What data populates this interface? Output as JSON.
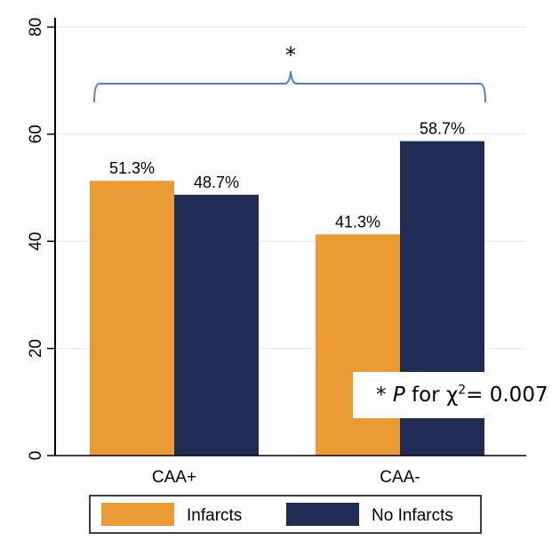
{
  "chart_data": {
    "type": "bar",
    "categories": [
      "CAA+",
      "CAA-"
    ],
    "series": [
      {
        "name": "Infarcts",
        "color": "#EB9B36",
        "values": [
          51.3,
          41.3
        ],
        "labels": [
          "51.3%",
          "41.3%"
        ]
      },
      {
        "name": "No Infarcts",
        "color": "#1F2D55",
        "values": [
          48.7,
          58.7
        ],
        "labels": [
          "48.7%",
          "58.7%"
        ]
      }
    ],
    "ylim": [
      0,
      85
    ],
    "yticks": [
      "0",
      "20",
      "40",
      "60",
      "80"
    ],
    "ytick_values": [
      0,
      20,
      40,
      60,
      80
    ],
    "grid": true,
    "legend_position": "bottom",
    "significance_marker": "*",
    "annotation": {
      "star": "*",
      "p": "P",
      "for": "for",
      "chi": "χ",
      "sup": "2",
      "value": "= 0.007"
    },
    "bracket_color": "#4F81BD"
  }
}
